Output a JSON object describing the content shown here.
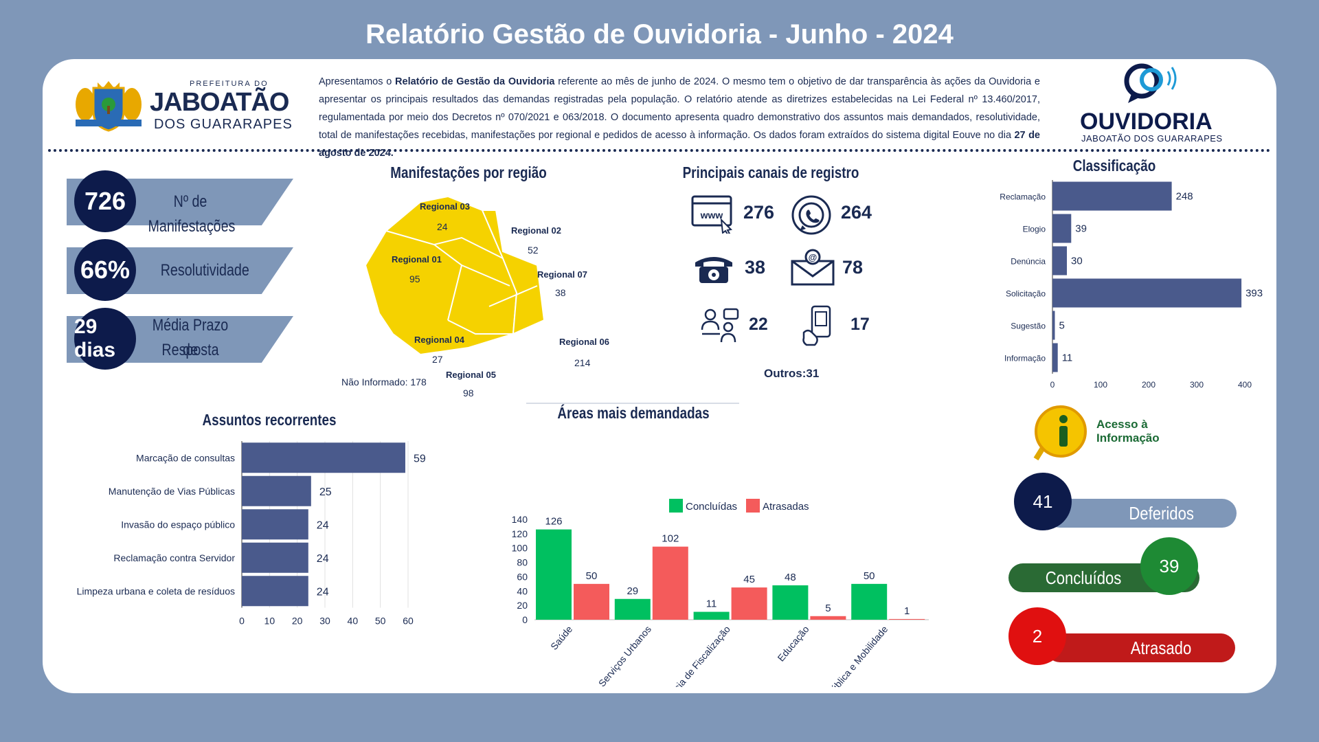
{
  "title": "Relatório Gestão de Ouvidoria - Junho - 2024",
  "logo_left": {
    "line1": "PREFEITURA DO",
    "line2": "JABOATÃO",
    "line3": "DOS GUARARAPES"
  },
  "logo_right": {
    "line1": "OUVIDORIA",
    "line2": "JABOATÃO DOS GUARARAPES"
  },
  "intro": {
    "p1": "Apresentamos o ",
    "b1": "Relatório de Gestão da Ouvidoria",
    "p2": " referente ao mês de junho de 2024. O mesmo tem o objetivo de dar transparência às ações da Ouvidoria e apresentar os principais resultados das demandas registradas pela população. O relatório atende as diretrizes estabelecidas na Lei Federal nº 13.460/2017, regulamentada por meio dos Decretos nº 070/2021 e 063/2018. O documento apresenta quadro demonstrativo dos assuntos mais demandados, resolutividade, total de manifestações recebidas, manifestações por regional e pedidos de acesso à informação.  Os dados foram extraídos do sistema digital Eouve no dia ",
    "b2": "27 de agosto de 2024."
  },
  "kpis": [
    {
      "value": "726",
      "label": "Nº de Manifestações"
    },
    {
      "value": "66%",
      "label": "Resolutividade"
    },
    {
      "value": "29 dias",
      "label1": "Média Prazo de",
      "label2": "Resposta"
    }
  ],
  "regiao": {
    "title": "Manifestações  por região",
    "items": [
      {
        "name": "Regional 03",
        "value": "24"
      },
      {
        "name": "Regional 02",
        "value": "52"
      },
      {
        "name": "Regional 01",
        "value": "95"
      },
      {
        "name": "Regional 07",
        "value": "38"
      },
      {
        "name": "Regional 04",
        "value": "27"
      },
      {
        "name": "Regional 06",
        "value": "214"
      },
      {
        "name": "Regional 05",
        "value": "98"
      }
    ],
    "nao_informado": "Não Informado: 178"
  },
  "canais": {
    "title": "Principais canais de registro",
    "items": [
      {
        "icon": "web-icon",
        "value": "276"
      },
      {
        "icon": "whatsapp-icon",
        "value": "264"
      },
      {
        "icon": "telephone-icon",
        "value": "38"
      },
      {
        "icon": "email-icon",
        "value": "78"
      },
      {
        "icon": "in-person-icon",
        "value": "22"
      },
      {
        "icon": "mobile-app-icon",
        "value": "17"
      }
    ],
    "outros": "Outros:31"
  },
  "chart_data": [
    {
      "type": "bar",
      "orientation": "horizontal",
      "title": "Classificação",
      "categories": [
        "Reclamação",
        "Elogio",
        "Denúncia",
        "Solicitação",
        "Sugestão",
        "Informação"
      ],
      "values": [
        248,
        39,
        30,
        393,
        5,
        11
      ],
      "xlim": [
        0,
        400
      ],
      "xticks": [
        0,
        100,
        200,
        300,
        400
      ],
      "color": "#4a5a8c"
    },
    {
      "type": "bar",
      "orientation": "horizontal",
      "title": "Assuntos recorrentes",
      "categories": [
        "Marcação de consultas",
        "Manutenção de Vias Públicas",
        "Invasão do espaço público",
        "Reclamação contra Servidor",
        "Limpeza urbana e coleta de resíduos"
      ],
      "values": [
        59,
        25,
        24,
        24,
        24
      ],
      "xlim": [
        0,
        60
      ],
      "xticks": [
        0,
        10,
        20,
        30,
        40,
        50,
        60
      ],
      "color": "#4a5a8c",
      "grid": true
    },
    {
      "type": "bar",
      "title": "Áreas mais demandadas",
      "categories": [
        "Saúde",
        "Serviços Urbanos",
        "Gerência de Fiscalização",
        "Educação",
        "Ordem Pública e Mobilidade"
      ],
      "series": [
        {
          "name": "Concluídas",
          "values": [
            126,
            29,
            11,
            48,
            50
          ],
          "color": "#00c060"
        },
        {
          "name": "Atrasadas",
          "values": [
            50,
            102,
            45,
            5,
            1
          ],
          "color": "#f45b5b"
        }
      ],
      "ylim": [
        0,
        140
      ],
      "yticks": [
        0,
        20,
        40,
        60,
        80,
        100,
        120,
        140
      ],
      "legend": "top"
    }
  ],
  "acesso": {
    "label1": "Acesso à",
    "label2": "Informação",
    "deferidos": {
      "value": "41",
      "label": "Deferidos"
    },
    "concluidos": {
      "value": "39",
      "label": "Concluídos"
    },
    "atrasado": {
      "value": "2",
      "label": "Atrasado"
    }
  }
}
